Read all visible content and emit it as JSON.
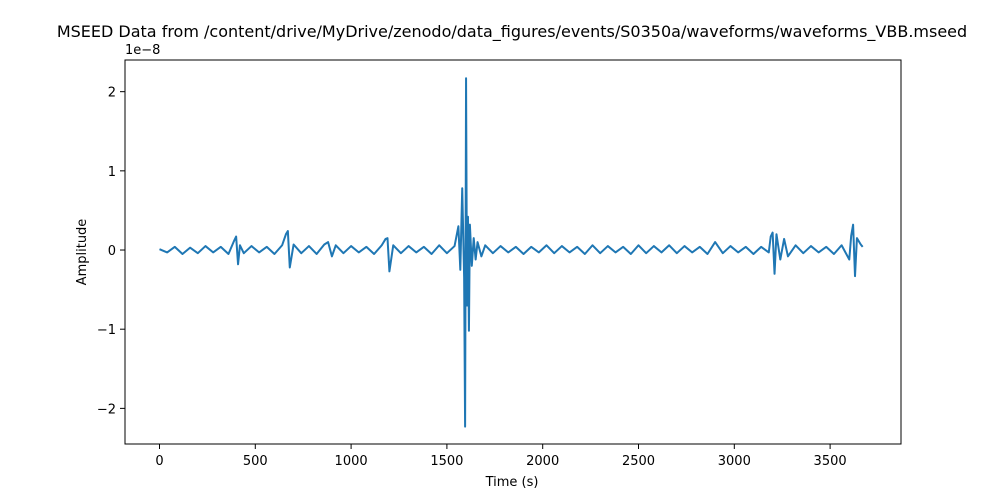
{
  "chart_data": {
    "type": "line",
    "title": "MSEED Data from /content/drive/MyDrive/zenodo/data_figures/events/S0350a/waveforms/waveforms_VBB.mseed",
    "xlabel": "Time (s)",
    "ylabel": "Amplitude",
    "y_offset_text": "1e−8",
    "xlim": [
      -180,
      3870
    ],
    "ylim": [
      -2.45,
      2.4
    ],
    "y_scale_factor": 1e-08,
    "xticks": [
      0,
      500,
      1000,
      1500,
      2000,
      2500,
      3000,
      3500
    ],
    "xtick_labels": [
      "0",
      "500",
      "1000",
      "1500",
      "2000",
      "2500",
      "3000",
      "3500"
    ],
    "yticks": [
      -2,
      -1,
      0,
      1,
      2
    ],
    "ytick_labels": [
      "−2",
      "−1",
      "0",
      "1",
      "2"
    ],
    "grid": false,
    "series": [
      {
        "color": "#1f77b4",
        "x": [
          0,
          40,
          80,
          120,
          160,
          200,
          240,
          280,
          320,
          360,
          390,
          400,
          410,
          420,
          440,
          480,
          520,
          560,
          600,
          640,
          660,
          670,
          680,
          700,
          740,
          780,
          820,
          860,
          880,
          900,
          920,
          960,
          1000,
          1040,
          1080,
          1120,
          1160,
          1180,
          1190,
          1200,
          1220,
          1260,
          1300,
          1340,
          1380,
          1420,
          1460,
          1500,
          1540,
          1560,
          1570,
          1580,
          1590,
          1595,
          1600,
          1605,
          1610,
          1615,
          1620,
          1630,
          1640,
          1650,
          1660,
          1680,
          1700,
          1740,
          1780,
          1820,
          1860,
          1900,
          1940,
          1980,
          2020,
          2060,
          2100,
          2140,
          2180,
          2220,
          2260,
          2300,
          2340,
          2380,
          2420,
          2460,
          2500,
          2540,
          2580,
          2620,
          2660,
          2700,
          2740,
          2780,
          2820,
          2860,
          2900,
          2940,
          2980,
          3020,
          3060,
          3100,
          3140,
          3180,
          3190,
          3200,
          3210,
          3220,
          3240,
          3260,
          3280,
          3320,
          3360,
          3400,
          3440,
          3480,
          3520,
          3560,
          3600,
          3610,
          3620,
          3630,
          3640,
          3660,
          3670
        ],
        "y": [
          0.01,
          -0.03,
          0.04,
          -0.05,
          0.03,
          -0.04,
          0.05,
          -0.03,
          0.04,
          -0.05,
          0.12,
          0.17,
          -0.18,
          0.06,
          -0.04,
          0.05,
          -0.03,
          0.04,
          -0.05,
          0.06,
          0.2,
          0.24,
          -0.22,
          0.07,
          -0.04,
          0.05,
          -0.05,
          0.07,
          0.1,
          -0.08,
          0.06,
          -0.04,
          0.05,
          -0.03,
          0.04,
          -0.05,
          0.06,
          0.14,
          0.15,
          -0.27,
          0.06,
          -0.04,
          0.05,
          -0.03,
          0.04,
          -0.05,
          0.06,
          -0.04,
          0.05,
          0.3,
          -0.25,
          0.78,
          -0.35,
          -2.23,
          2.17,
          -0.7,
          0.42,
          -1.02,
          0.32,
          -0.2,
          0.15,
          -0.12,
          0.1,
          -0.08,
          0.06,
          -0.04,
          0.05,
          -0.03,
          0.04,
          -0.05,
          0.04,
          -0.03,
          0.06,
          -0.04,
          0.05,
          -0.03,
          0.04,
          -0.05,
          0.06,
          -0.04,
          0.05,
          -0.03,
          0.04,
          -0.05,
          0.06,
          -0.04,
          0.05,
          -0.03,
          0.06,
          -0.04,
          0.05,
          -0.03,
          0.04,
          -0.05,
          0.1,
          -0.04,
          0.05,
          -0.03,
          0.04,
          -0.05,
          0.04,
          -0.03,
          0.17,
          0.22,
          -0.3,
          0.2,
          -0.12,
          0.14,
          -0.08,
          0.06,
          -0.04,
          0.05,
          -0.03,
          0.04,
          -0.05,
          0.06,
          -0.12,
          0.18,
          0.32,
          -0.33,
          0.15,
          0.07,
          0.04
        ]
      }
    ]
  }
}
